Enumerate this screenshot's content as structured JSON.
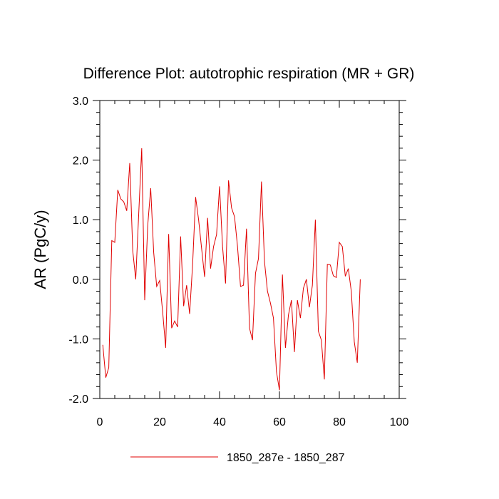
{
  "chart_data": {
    "type": "line",
    "title": "Difference Plot: autotrophic respiration (MR + GR)",
    "xlabel": "",
    "ylabel": "AR  (PgC/y)",
    "xlim": [
      0,
      100
    ],
    "ylim": [
      -2.0,
      3.0
    ],
    "x_ticks": [
      0,
      20,
      40,
      60,
      80,
      100
    ],
    "x_tick_labels": [
      "0",
      "20",
      "40",
      "60",
      "80",
      "100"
    ],
    "y_ticks": [
      -2.0,
      -1.0,
      0.0,
      1.0,
      2.0,
      3.0
    ],
    "y_tick_labels": [
      "-2.0",
      "-1.0",
      "0.0",
      "1.0",
      "2.0",
      "3.0"
    ],
    "grid": false,
    "legend_position": "bottom",
    "series": [
      {
        "name": "1850_287e - 1850_287",
        "color": "#e00000",
        "x": [
          1,
          2,
          3,
          4,
          5,
          6,
          7,
          8,
          9,
          10,
          11,
          12,
          13,
          14,
          15,
          16,
          17,
          18,
          19,
          20,
          21,
          22,
          23,
          24,
          25,
          26,
          27,
          28,
          29,
          30,
          31,
          32,
          33,
          34,
          35,
          36,
          37,
          38,
          39,
          40,
          41,
          42,
          43,
          44,
          45,
          46,
          47,
          48,
          49,
          50,
          51,
          52,
          53,
          54,
          55,
          56,
          57,
          58,
          59,
          60,
          61,
          62,
          63,
          64,
          65,
          66,
          67,
          68,
          69,
          70,
          71,
          72,
          73,
          74,
          75,
          76,
          77,
          78,
          79,
          80,
          81,
          82,
          83,
          84,
          85,
          86,
          87
        ],
        "values": [
          -1.1,
          -1.65,
          -1.48,
          0.65,
          0.62,
          1.5,
          1.35,
          1.3,
          1.15,
          1.95,
          0.48,
          0.0,
          1.1,
          2.2,
          -0.35,
          0.9,
          1.53,
          0.45,
          -0.12,
          -0.02,
          -0.55,
          -1.15,
          0.76,
          -0.82,
          -0.7,
          -0.8,
          0.72,
          -0.45,
          -0.1,
          -0.58,
          0.25,
          1.38,
          1.0,
          0.52,
          0.04,
          1.03,
          0.18,
          0.55,
          0.75,
          1.56,
          0.55,
          -0.07,
          1.66,
          1.2,
          1.05,
          0.55,
          -0.12,
          -0.1,
          0.85,
          -0.82,
          -1.02,
          0.1,
          0.35,
          1.64,
          0.3,
          -0.2,
          -0.4,
          -0.65,
          -1.55,
          -1.86,
          0.08,
          -1.15,
          -0.6,
          -0.35,
          -1.22,
          -0.35,
          -0.65,
          -0.15,
          0.0,
          -0.47,
          -0.1,
          1.0,
          -0.87,
          -1.02,
          -1.68,
          0.25,
          0.24,
          0.06,
          0.03,
          0.62,
          0.55,
          0.05,
          0.18,
          -0.2,
          -1.05,
          -1.4,
          0.0
        ]
      }
    ]
  }
}
